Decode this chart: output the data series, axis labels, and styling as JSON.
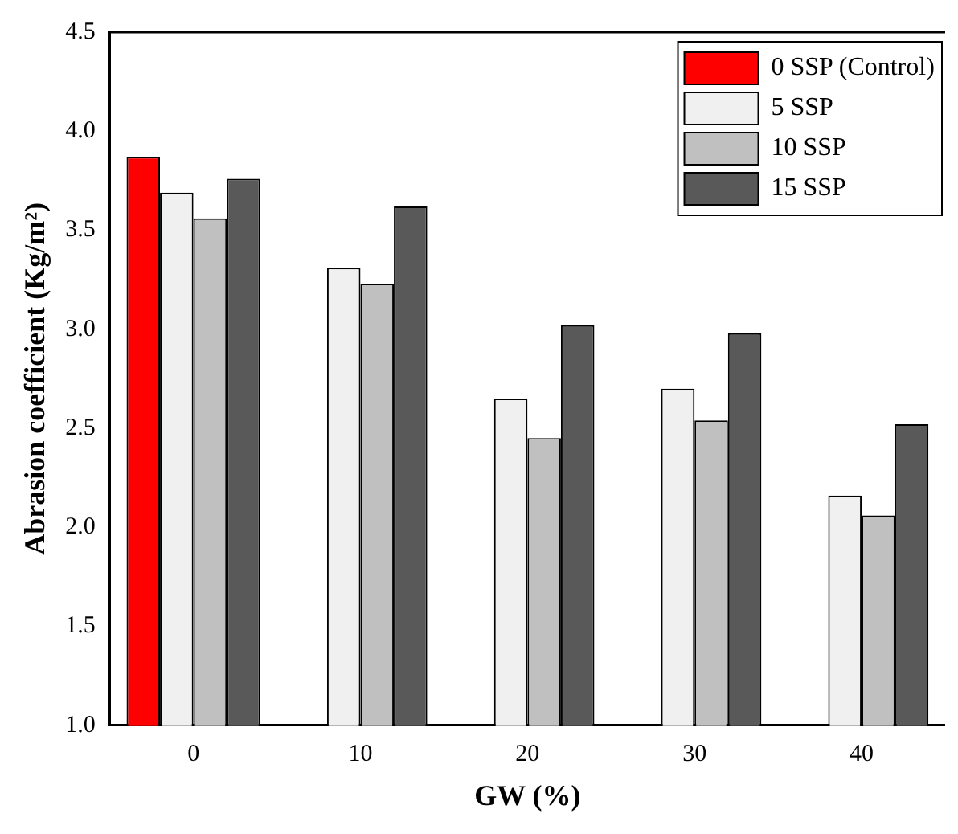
{
  "chart_data": {
    "type": "bar",
    "xlabel": "GW (%)",
    "ylabel": "Abrasion coefficient (Kg/m²)",
    "categories": [
      "0",
      "10",
      "20",
      "30",
      "40"
    ],
    "series": [
      {
        "name": "0 SSP (Control)",
        "color": "#ff0000",
        "values": [
          3.87,
          null,
          null,
          null,
          null
        ]
      },
      {
        "name": "5 SSP",
        "color": "#f0f0f0",
        "values": [
          3.69,
          3.31,
          2.65,
          2.7,
          2.16
        ]
      },
      {
        "name": "10 SSP",
        "color": "#c0c0c0",
        "values": [
          3.56,
          3.23,
          2.45,
          2.54,
          2.06
        ]
      },
      {
        "name": "15 SSP",
        "color": "#595959",
        "values": [
          3.76,
          3.62,
          3.02,
          2.98,
          2.52
        ]
      }
    ],
    "ylim": [
      1.0,
      4.5
    ],
    "yticks": [
      {
        "value": 1,
        "label": "1.0"
      },
      {
        "value": 1.5,
        "label": "1.5"
      },
      {
        "value": 2,
        "label": "2.0"
      },
      {
        "value": 2.5,
        "label": "2.5"
      },
      {
        "value": 3,
        "label": "3.0"
      },
      {
        "value": 3.5,
        "label": "3.5"
      },
      {
        "value": 4,
        "label": "4.0"
      },
      {
        "value": 4.5,
        "label": "4.5"
      }
    ],
    "grid": false,
    "legend": "top right"
  }
}
